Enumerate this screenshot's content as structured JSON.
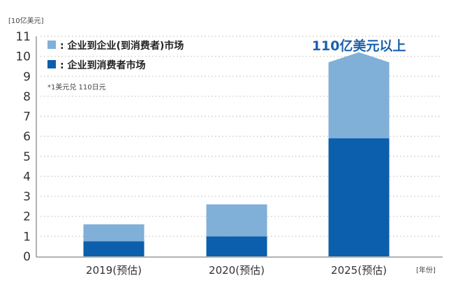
{
  "chart_data": {
    "type": "bar",
    "stacked": true,
    "ylabel": "[10亿美元]",
    "xlabel": "[年份]",
    "ylim": [
      0,
      11
    ],
    "yticks": [
      0,
      1,
      2,
      3,
      4,
      5,
      6,
      7,
      8,
      9,
      10,
      11
    ],
    "grid": true,
    "categories": [
      "2019(预估)",
      "2020(预估)",
      "2025(预估)"
    ],
    "series": [
      {
        "name": "企业到消费者市场",
        "color": "#0b5fad",
        "values": [
          0.75,
          1.0,
          5.9
        ]
      },
      {
        "name": "企业到企业(到消费者)市场",
        "color": "#80afd8",
        "values": [
          0.85,
          1.6,
          3.8
        ]
      }
    ],
    "legend_position": "top-left",
    "legend_labels": [
      ": 企业到企业(到消费者)市场",
      ": 企业到消费者市场"
    ],
    "note": "*1美元兑 110日元",
    "annotation": "110亿美元以上"
  }
}
